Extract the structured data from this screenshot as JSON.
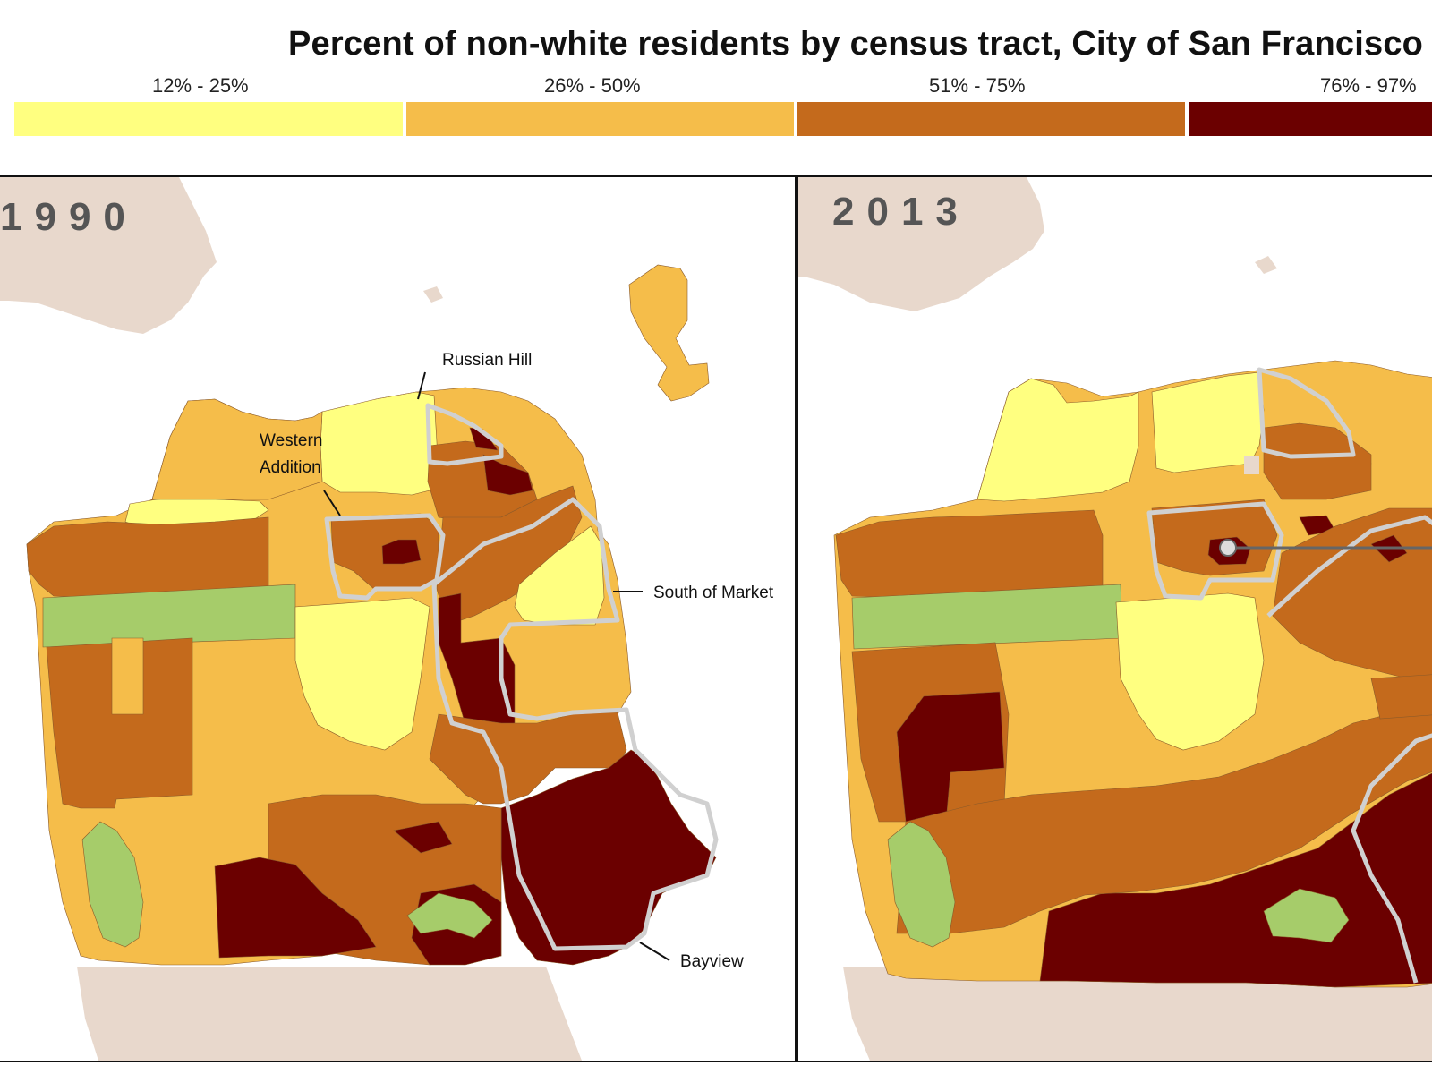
{
  "title": "Percent of non-white residents by census tract, City of San Francisco",
  "legend": [
    {
      "label": "12% - 25%",
      "color": "#ffff80"
    },
    {
      "label": "26% - 50%",
      "color": "#f5bd4a"
    },
    {
      "label": "51%  - 75%",
      "color": "#c46a1c"
    },
    {
      "label": "76%  - 97%",
      "color": "#6b0000"
    }
  ],
  "colors": {
    "land_outside": "#e8d8cc",
    "park": "#a6cc6a",
    "tract_line": "#8a5a2a",
    "district_outline": "#d0d0d0",
    "water": "#ffffff"
  },
  "panels": [
    {
      "year": "1990",
      "callouts": {
        "russian_hill": "Russian Hill",
        "western_addition_1": "Western",
        "western_addition_2": "Addition",
        "south_of_market": "South of Market",
        "bayview": "Bayview"
      }
    },
    {
      "year": "2013"
    }
  ]
}
